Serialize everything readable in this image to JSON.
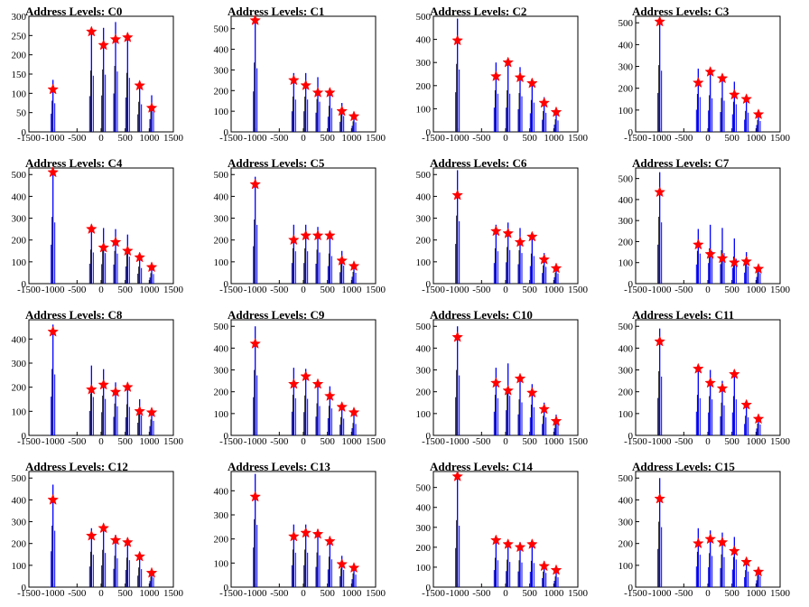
{
  "chart_data": [
    {
      "type": "bar",
      "title": "Address Levels: C0",
      "xlim": [
        -1500,
        1500
      ],
      "ylim": [
        0,
        300
      ],
      "yticks": [
        0,
        50,
        100,
        150,
        200,
        250,
        300
      ],
      "xticks": [
        -1500,
        -1000,
        -500,
        0,
        500,
        1000,
        1500
      ],
      "series": [
        {
          "x": [
            -1000,
            -200,
            50,
            300,
            550,
            800,
            1050
          ],
          "values": [
            135,
            265,
            270,
            285,
            255,
            130,
            95
          ]
        }
      ],
      "markers": {
        "x": [
          -1000,
          -200,
          50,
          300,
          550,
          800,
          1050
        ],
        "values": [
          110,
          260,
          225,
          240,
          245,
          120,
          62
        ]
      },
      "colors": {
        "bars": "#0000ff",
        "markers": "#ff0000"
      }
    },
    {
      "type": "bar",
      "title": "Address Levels: C1",
      "xlim": [
        -1500,
        1500
      ],
      "ylim": [
        0,
        560
      ],
      "yticks": [
        0,
        100,
        200,
        300,
        400,
        500
      ],
      "xticks": [
        -1500,
        -1000,
        -500,
        0,
        500,
        1000,
        1500
      ],
      "series": [
        {
          "x": [
            -1000,
            -200,
            50,
            300,
            550,
            800,
            1050
          ],
          "values": [
            560,
            285,
            285,
            265,
            210,
            140,
            85
          ]
        }
      ],
      "markers": {
        "x": [
          -1000,
          -200,
          50,
          300,
          550,
          800,
          1050
        ],
        "values": [
          540,
          250,
          225,
          190,
          190,
          100,
          75
        ]
      },
      "colors": {
        "bars": "#0000ff",
        "markers": "#ff0000"
      }
    },
    {
      "type": "bar",
      "title": "Address Levels: C2",
      "xlim": [
        -1500,
        1500
      ],
      "ylim": [
        0,
        500
      ],
      "yticks": [
        0,
        100,
        200,
        300,
        400,
        500
      ],
      "xticks": [
        -1500,
        -1000,
        -500,
        0,
        500,
        1000,
        1500
      ],
      "series": [
        {
          "x": [
            -1000,
            -200,
            50,
            300,
            550,
            800,
            1050
          ],
          "values": [
            490,
            300,
            300,
            280,
            230,
            150,
            90
          ]
        }
      ],
      "markers": {
        "x": [
          -1000,
          -200,
          50,
          300,
          550,
          800,
          1050
        ],
        "values": [
          395,
          240,
          300,
          235,
          210,
          125,
          85
        ]
      },
      "colors": {
        "bars": "#0000ff",
        "markers": "#ff0000"
      }
    },
    {
      "type": "bar",
      "title": "Address Levels: C3",
      "xlim": [
        -1500,
        1500
      ],
      "ylim": [
        0,
        530
      ],
      "yticks": [
        0,
        100,
        200,
        300,
        400,
        500
      ],
      "xticks": [
        -1500,
        -1000,
        -500,
        0,
        500,
        1000,
        1500
      ],
      "series": [
        {
          "x": [
            -1000,
            -200,
            50,
            300,
            550,
            800,
            1050
          ],
          "values": [
            510,
            290,
            280,
            260,
            230,
            160,
            90
          ]
        }
      ],
      "markers": {
        "x": [
          -1000,
          -200,
          50,
          300,
          550,
          800,
          1050
        ],
        "values": [
          505,
          225,
          275,
          245,
          170,
          150,
          80
        ]
      },
      "colors": {
        "bars": "#0000ff",
        "markers": "#ff0000"
      }
    },
    {
      "type": "bar",
      "title": "Address Levels: C4",
      "xlim": [
        -1500,
        1500
      ],
      "ylim": [
        0,
        530
      ],
      "yticks": [
        0,
        100,
        200,
        300,
        400,
        500
      ],
      "xticks": [
        -1500,
        -1000,
        -500,
        0,
        500,
        1000,
        1500
      ],
      "series": [
        {
          "x": [
            -1000,
            -200,
            50,
            300,
            550,
            800,
            1050
          ],
          "values": [
            510,
            260,
            255,
            250,
            225,
            130,
            80
          ]
        }
      ],
      "markers": {
        "x": [
          -1000,
          -200,
          50,
          300,
          550,
          800,
          1050
        ],
        "values": [
          510,
          250,
          165,
          190,
          150,
          120,
          75
        ]
      },
      "colors": {
        "bars": "#0000ff",
        "markers": "#ff0000"
      }
    },
    {
      "type": "bar",
      "title": "Address Levels: C5",
      "xlim": [
        -1500,
        1500
      ],
      "ylim": [
        0,
        530
      ],
      "yticks": [
        0,
        100,
        200,
        300,
        400,
        500
      ],
      "xticks": [
        -1500,
        -1000,
        -500,
        0,
        500,
        1000,
        1500
      ],
      "series": [
        {
          "x": [
            -1000,
            -200,
            50,
            300,
            550,
            800,
            1050
          ],
          "values": [
            490,
            270,
            270,
            260,
            230,
            150,
            90
          ]
        }
      ],
      "markers": {
        "x": [
          -1000,
          -200,
          50,
          300,
          550,
          800,
          1050
        ],
        "values": [
          455,
          200,
          220,
          220,
          220,
          105,
          80
        ]
      },
      "colors": {
        "bars": "#0000ff",
        "markers": "#ff0000"
      }
    },
    {
      "type": "bar",
      "title": "Address Levels: C6",
      "xlim": [
        -1500,
        1500
      ],
      "ylim": [
        0,
        530
      ],
      "yticks": [
        0,
        100,
        200,
        300,
        400,
        500
      ],
      "xticks": [
        -1500,
        -1000,
        -500,
        0,
        500,
        1000,
        1500
      ],
      "series": [
        {
          "x": [
            -1000,
            -200,
            50,
            300,
            550,
            800,
            1050
          ],
          "values": [
            520,
            270,
            280,
            255,
            230,
            140,
            85
          ]
        }
      ],
      "markers": {
        "x": [
          -1000,
          -200,
          50,
          300,
          550,
          800,
          1050
        ],
        "values": [
          405,
          240,
          230,
          190,
          215,
          110,
          70
        ]
      },
      "colors": {
        "bars": "#0000ff",
        "markers": "#ff0000"
      }
    },
    {
      "type": "bar",
      "title": "Address Levels: C7",
      "xlim": [
        -1500,
        1500
      ],
      "ylim": [
        0,
        550
      ],
      "yticks": [
        0,
        100,
        200,
        300,
        400,
        500
      ],
      "xticks": [
        -1500,
        -1000,
        -500,
        0,
        500,
        1000,
        1500
      ],
      "series": [
        {
          "x": [
            -1000,
            -200,
            50,
            300,
            550,
            800,
            1050
          ],
          "values": [
            530,
            260,
            280,
            265,
            215,
            150,
            90
          ]
        }
      ],
      "markers": {
        "x": [
          -1000,
          -200,
          50,
          300,
          550,
          800,
          1050
        ],
        "values": [
          435,
          185,
          140,
          120,
          100,
          105,
          70
        ]
      },
      "colors": {
        "bars": "#0000ff",
        "markers": "#ff0000"
      }
    },
    {
      "type": "bar",
      "title": "Address Levels: C8",
      "xlim": [
        -1500,
        1500
      ],
      "ylim": [
        0,
        480
      ],
      "yticks": [
        0,
        100,
        200,
        300,
        400
      ],
      "xticks": [
        -1500,
        -1000,
        -500,
        0,
        500,
        1000,
        1500
      ],
      "series": [
        {
          "x": [
            -1000,
            -200,
            50,
            300,
            550,
            800,
            1050
          ],
          "values": [
            460,
            290,
            275,
            220,
            215,
            150,
            110
          ]
        }
      ],
      "markers": {
        "x": [
          -1000,
          -200,
          50,
          300,
          550,
          800,
          1050
        ],
        "values": [
          430,
          190,
          210,
          180,
          200,
          100,
          95
        ]
      },
      "colors": {
        "bars": "#0000ff",
        "markers": "#ff0000"
      }
    },
    {
      "type": "bar",
      "title": "Address Levels: C9",
      "xlim": [
        -1500,
        1500
      ],
      "ylim": [
        0,
        530
      ],
      "yticks": [
        0,
        100,
        200,
        300,
        400,
        500
      ],
      "xticks": [
        -1500,
        -1000,
        -500,
        0,
        500,
        1000,
        1500
      ],
      "series": [
        {
          "x": [
            -1000,
            -200,
            50,
            300,
            550,
            800,
            1050
          ],
          "values": [
            500,
            310,
            305,
            245,
            225,
            140,
            95
          ]
        }
      ],
      "markers": {
        "x": [
          -1000,
          -200,
          50,
          300,
          550,
          800,
          1050
        ],
        "values": [
          420,
          235,
          270,
          235,
          180,
          130,
          105
        ]
      },
      "colors": {
        "bars": "#0000ff",
        "markers": "#ff0000"
      }
    },
    {
      "type": "bar",
      "title": "Address Levels: C10",
      "xlim": [
        -1500,
        1500
      ],
      "ylim": [
        0,
        530
      ],
      "yticks": [
        0,
        100,
        200,
        300,
        400,
        500
      ],
      "xticks": [
        -1500,
        -1000,
        -500,
        0,
        500,
        1000,
        1500
      ],
      "series": [
        {
          "x": [
            -1000,
            -200,
            50,
            300,
            550,
            800,
            1050
          ],
          "values": [
            500,
            310,
            330,
            275,
            235,
            150,
            95
          ]
        }
      ],
      "markers": {
        "x": [
          -1000,
          -200,
          50,
          300,
          550,
          800,
          1050
        ],
        "values": [
          450,
          240,
          205,
          260,
          195,
          120,
          65
        ]
      },
      "colors": {
        "bars": "#0000ff",
        "markers": "#ff0000"
      }
    },
    {
      "type": "bar",
      "title": "Address Levels: C11",
      "xlim": [
        -1500,
        1500
      ],
      "ylim": [
        0,
        530
      ],
      "yticks": [
        0,
        100,
        200,
        300,
        400,
        500
      ],
      "xticks": [
        -1500,
        -1000,
        -500,
        0,
        500,
        1000,
        1500
      ],
      "series": [
        {
          "x": [
            -1000,
            -200,
            50,
            300,
            550,
            800,
            1050
          ],
          "values": [
            490,
            310,
            300,
            250,
            300,
            150,
            90
          ]
        }
      ],
      "markers": {
        "x": [
          -1000,
          -200,
          50,
          300,
          550,
          800,
          1050
        ],
        "values": [
          430,
          305,
          240,
          215,
          280,
          140,
          75
        ]
      },
      "colors": {
        "bars": "#0000ff",
        "markers": "#ff0000"
      }
    },
    {
      "type": "bar",
      "title": "Address Levels: C12",
      "xlim": [
        -1500,
        1500
      ],
      "ylim": [
        0,
        530
      ],
      "yticks": [
        0,
        100,
        200,
        300,
        400,
        500
      ],
      "xticks": [
        -1500,
        -1000,
        -500,
        0,
        500,
        1000,
        1500
      ],
      "series": [
        {
          "x": [
            -1000,
            -200,
            50,
            300,
            550,
            800,
            1050
          ],
          "values": [
            470,
            270,
            285,
            240,
            225,
            150,
            80
          ]
        }
      ],
      "markers": {
        "x": [
          -1000,
          -200,
          50,
          300,
          550,
          800,
          1050
        ],
        "values": [
          400,
          235,
          270,
          215,
          205,
          140,
          65
        ]
      },
      "colors": {
        "bars": "#0000ff",
        "markers": "#ff0000"
      }
    },
    {
      "type": "bar",
      "title": "Address Levels: C13",
      "xlim": [
        -1500,
        1500
      ],
      "ylim": [
        0,
        480
      ],
      "yticks": [
        0,
        100,
        200,
        300,
        400
      ],
      "xticks": [
        -1500,
        -1000,
        -500,
        0,
        500,
        1000,
        1500
      ],
      "series": [
        {
          "x": [
            -1000,
            -200,
            50,
            300,
            550,
            800,
            1050
          ],
          "values": [
            470,
            260,
            260,
            240,
            210,
            130,
            95
          ]
        }
      ],
      "markers": {
        "x": [
          -1000,
          -200,
          50,
          300,
          550,
          800,
          1050
        ],
        "values": [
          375,
          210,
          225,
          220,
          190,
          95,
          80
        ]
      },
      "colors": {
        "bars": "#0000ff",
        "markers": "#ff0000"
      }
    },
    {
      "type": "bar",
      "title": "Address Levels: C14",
      "xlim": [
        -1500,
        1500
      ],
      "ylim": [
        0,
        580
      ],
      "yticks": [
        0,
        100,
        200,
        300,
        400,
        500
      ],
      "xticks": [
        -1500,
        -1000,
        -500,
        0,
        500,
        1000,
        1500
      ],
      "series": [
        {
          "x": [
            -1000,
            -200,
            50,
            300,
            550,
            800,
            1050
          ],
          "values": [
            560,
            245,
            230,
            225,
            220,
            130,
            90
          ]
        }
      ],
      "markers": {
        "x": [
          -1000,
          -200,
          50,
          300,
          550,
          800,
          1050
        ],
        "values": [
          555,
          235,
          215,
          200,
          215,
          105,
          85
        ]
      },
      "colors": {
        "bars": "#0000ff",
        "markers": "#ff0000"
      }
    },
    {
      "type": "bar",
      "title": "Address Levels: C15",
      "xlim": [
        -1500,
        1500
      ],
      "ylim": [
        0,
        530
      ],
      "yticks": [
        0,
        100,
        200,
        300,
        400,
        500
      ],
      "xticks": [
        -1500,
        -1000,
        -500,
        0,
        500,
        1000,
        1500
      ],
      "series": [
        {
          "x": [
            -1000,
            -200,
            50,
            300,
            550,
            800,
            1050
          ],
          "values": [
            500,
            270,
            260,
            250,
            230,
            130,
            90
          ]
        }
      ],
      "markers": {
        "x": [
          -1000,
          -200,
          50,
          300,
          550,
          800,
          1050
        ],
        "values": [
          405,
          200,
          220,
          205,
          165,
          115,
          70
        ]
      },
      "colors": {
        "bars": "#0000ff",
        "markers": "#ff0000"
      }
    }
  ]
}
